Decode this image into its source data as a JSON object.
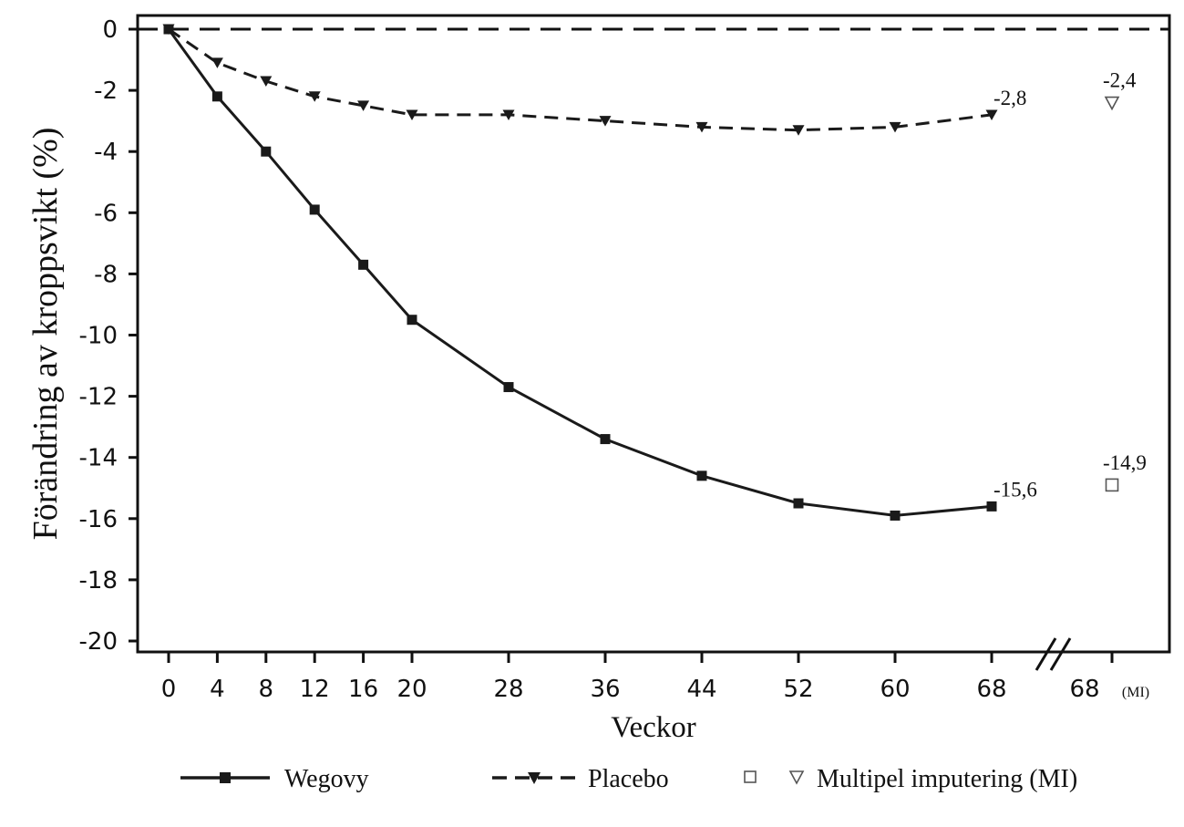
{
  "chart_data": {
    "type": "line",
    "title": "",
    "xlabel": "Veckor",
    "ylabel": "Förändring av kroppsvikt (%)",
    "ylim": [
      -20,
      0
    ],
    "yticks": [
      0,
      -2,
      -4,
      -6,
      -8,
      -10,
      -12,
      -14,
      -16,
      -18,
      -20
    ],
    "ytick_labels": [
      "0",
      "-2",
      "-4",
      "-6",
      "-8",
      "-10",
      "-12",
      "-14",
      "-16",
      "-18",
      "-20"
    ],
    "x": [
      0,
      4,
      8,
      12,
      16,
      20,
      28,
      36,
      44,
      52,
      60,
      68
    ],
    "xtick_labels": [
      "0",
      "4",
      "8",
      "12",
      "16",
      "20",
      "28",
      "36",
      "44",
      "52",
      "60",
      "68"
    ],
    "mi_tick": {
      "label": "68",
      "suffix": "(MI)"
    },
    "reference_line": 0,
    "series": [
      {
        "name": "Wegovy",
        "style": "solid",
        "marker": "square",
        "values": [
          0,
          -2.2,
          -4.0,
          -5.9,
          -7.7,
          -9.5,
          -11.7,
          -13.4,
          -14.6,
          -15.5,
          -15.9,
          -15.6
        ],
        "end_label": "-15,6",
        "mi_value": -14.9,
        "mi_label": "-14,9"
      },
      {
        "name": "Placebo",
        "style": "dashed",
        "marker": "triangle-down",
        "values": [
          0,
          -1.1,
          -1.7,
          -2.2,
          -2.5,
          -2.8,
          -2.8,
          -3.0,
          -3.2,
          -3.3,
          -3.2,
          -2.8
        ],
        "end_label": "-2,8",
        "mi_value": -2.4,
        "mi_label": "-2,4"
      }
    ],
    "legend": {
      "placement": "bottom",
      "items": [
        {
          "label": "Wegovy",
          "style": "solid",
          "marker": "square"
        },
        {
          "label": "Placebo",
          "style": "dashed",
          "marker": "triangle-down"
        },
        {
          "label": "Multipel imputering (MI)",
          "style": "none",
          "marker": "open-square-and-open-triangle"
        }
      ]
    },
    "colors": {
      "line": "#1a1a1a",
      "axis": "#111111",
      "open_marker": "#555555"
    }
  }
}
